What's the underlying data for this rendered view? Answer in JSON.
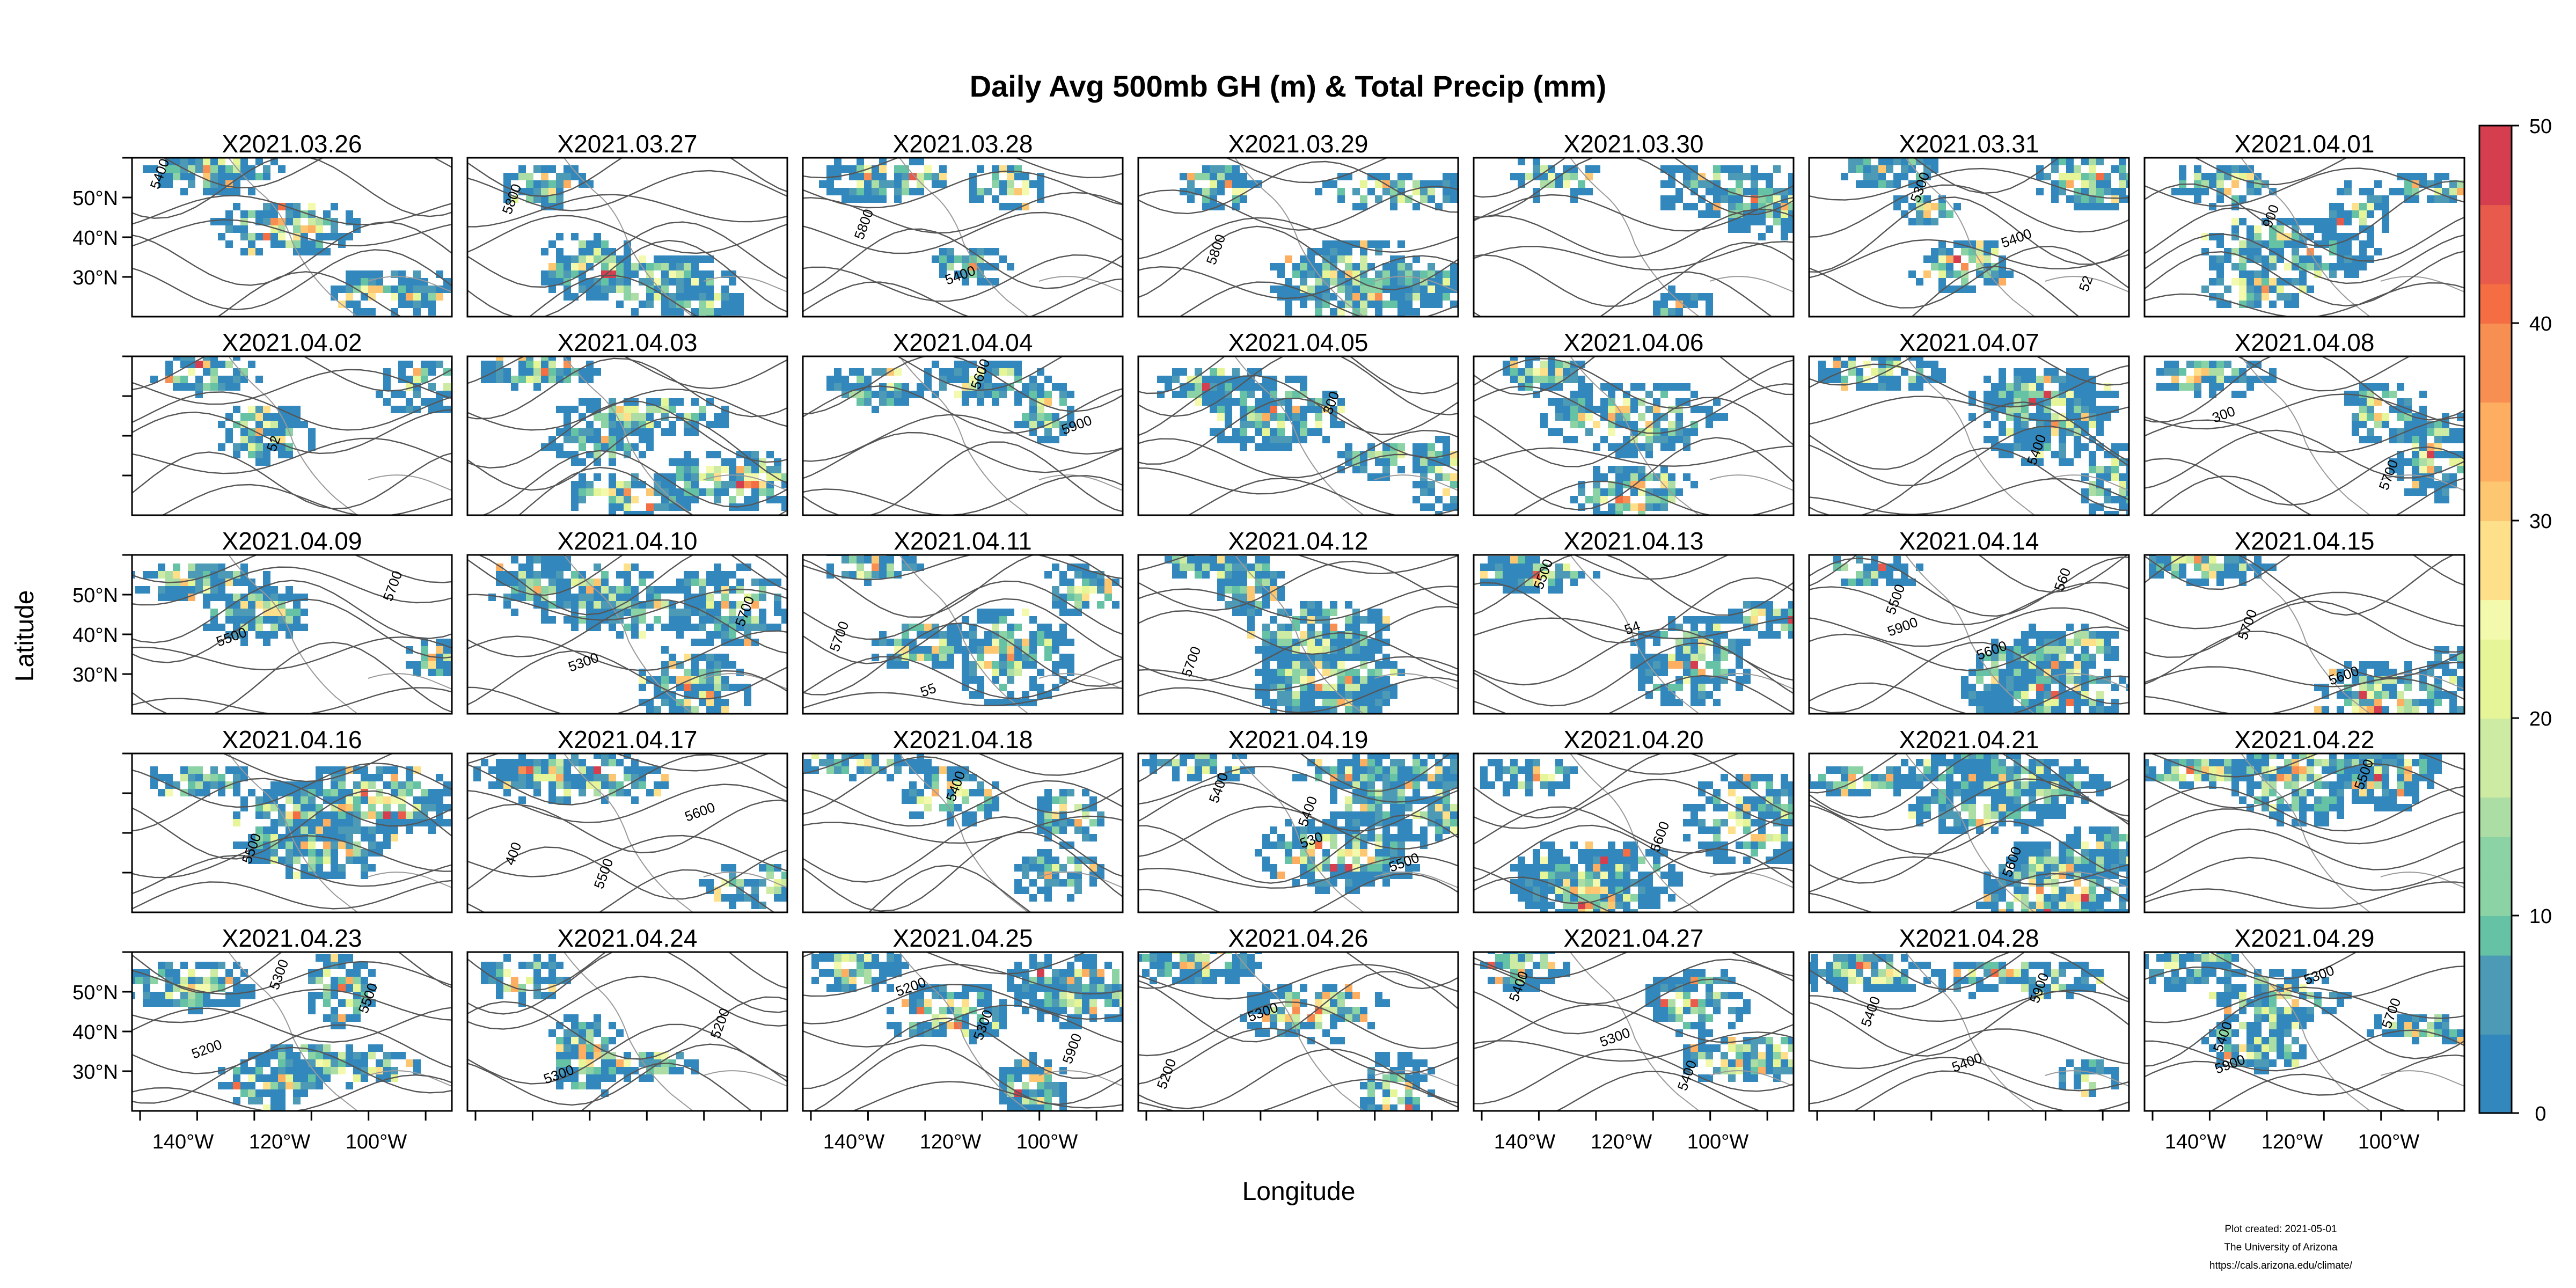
{
  "chart_data": {
    "type": "heatmap",
    "title": "Daily Avg 500mb GH (m) & Total Precip (mm)",
    "xlabel": "Longitude",
    "ylabel": "Latitude",
    "x_ticks": [
      "140°W",
      "120°W",
      "100°W"
    ],
    "y_ticks": [
      "50°N",
      "40°N",
      "30°N"
    ],
    "colorbar": {
      "ticks": [
        "0",
        "10",
        "20",
        "30",
        "40",
        "50"
      ],
      "range": [
        0,
        50
      ],
      "colors": [
        "#3288bd",
        "#4c9ab5",
        "#66c2a5",
        "#8bd2a4",
        "#abdda4",
        "#cdeba3",
        "#e6f598",
        "#f4faad",
        "#fee08b",
        "#fdc772",
        "#fdae61",
        "#f88f52",
        "#f46d43",
        "#e85a4b",
        "#d53e4f"
      ]
    },
    "panels": [
      {
        "date": "X2021.03.26",
        "contours": [
          "5400"
        ]
      },
      {
        "date": "X2021.03.27",
        "contours": [
          "5800"
        ]
      },
      {
        "date": "X2021.03.28",
        "contours": [
          "5800",
          "5400"
        ]
      },
      {
        "date": "X2021.03.29",
        "contours": [
          "5800"
        ]
      },
      {
        "date": "X2021.03.30",
        "contours": []
      },
      {
        "date": "X2021.03.31",
        "contours": [
          "5300",
          "5400",
          "52"
        ]
      },
      {
        "date": "X2021.04.01",
        "contours": [
          "900"
        ]
      },
      {
        "date": "X2021.04.02",
        "contours": [
          "52"
        ]
      },
      {
        "date": "X2021.04.03",
        "contours": []
      },
      {
        "date": "X2021.04.04",
        "contours": [
          "5600",
          "5900"
        ]
      },
      {
        "date": "X2021.04.05",
        "contours": [
          "300"
        ]
      },
      {
        "date": "X2021.04.06",
        "contours": []
      },
      {
        "date": "X2021.04.07",
        "contours": [
          "5400"
        ]
      },
      {
        "date": "X2021.04.08",
        "contours": [
          "5700",
          "300"
        ]
      },
      {
        "date": "X2021.04.09",
        "contours": [
          "5700",
          "5500"
        ]
      },
      {
        "date": "X2021.04.10",
        "contours": [
          "5700",
          "5300"
        ]
      },
      {
        "date": "X2021.04.11",
        "contours": [
          "5700",
          "55"
        ]
      },
      {
        "date": "X2021.04.12",
        "contours": [
          "5700"
        ]
      },
      {
        "date": "X2021.04.13",
        "contours": [
          "5500",
          "54"
        ]
      },
      {
        "date": "X2021.04.14",
        "contours": [
          "5500",
          "5600",
          "560",
          "5900"
        ]
      },
      {
        "date": "X2021.04.15",
        "contours": [
          "5700",
          "5600"
        ]
      },
      {
        "date": "X2021.04.16",
        "contours": [
          "5500"
        ]
      },
      {
        "date": "X2021.04.17",
        "contours": [
          "5500",
          "5600",
          "400"
        ]
      },
      {
        "date": "X2021.04.18",
        "contours": [
          "5400"
        ]
      },
      {
        "date": "X2021.04.19",
        "contours": [
          "5400",
          "5500",
          "5400",
          "530"
        ]
      },
      {
        "date": "X2021.04.20",
        "contours": [
          "5600"
        ]
      },
      {
        "date": "X2021.04.21",
        "contours": [
          "5600"
        ]
      },
      {
        "date": "X2021.04.22",
        "contours": [
          "5500"
        ]
      },
      {
        "date": "X2021.04.23",
        "contours": [
          "5500",
          "5200",
          "5300"
        ]
      },
      {
        "date": "X2021.04.24",
        "contours": [
          "5200",
          "5300"
        ]
      },
      {
        "date": "X2021.04.25",
        "contours": [
          "5900",
          "5200",
          "5300"
        ]
      },
      {
        "date": "X2021.04.26",
        "contours": [
          "5200",
          "5300"
        ]
      },
      {
        "date": "X2021.04.27",
        "contours": [
          "5400",
          "5300",
          "5400"
        ]
      },
      {
        "date": "X2021.04.28",
        "contours": [
          "5400",
          "5400",
          "5900"
        ]
      },
      {
        "date": "X2021.04.29",
        "contours": [
          "5400",
          "5300",
          "5700",
          "5900"
        ]
      }
    ]
  },
  "credits": {
    "line1": "Plot created: 2021-05-01",
    "line2": "The University of Arizona",
    "line3": "https://cals.arizona.edu/climate/"
  }
}
